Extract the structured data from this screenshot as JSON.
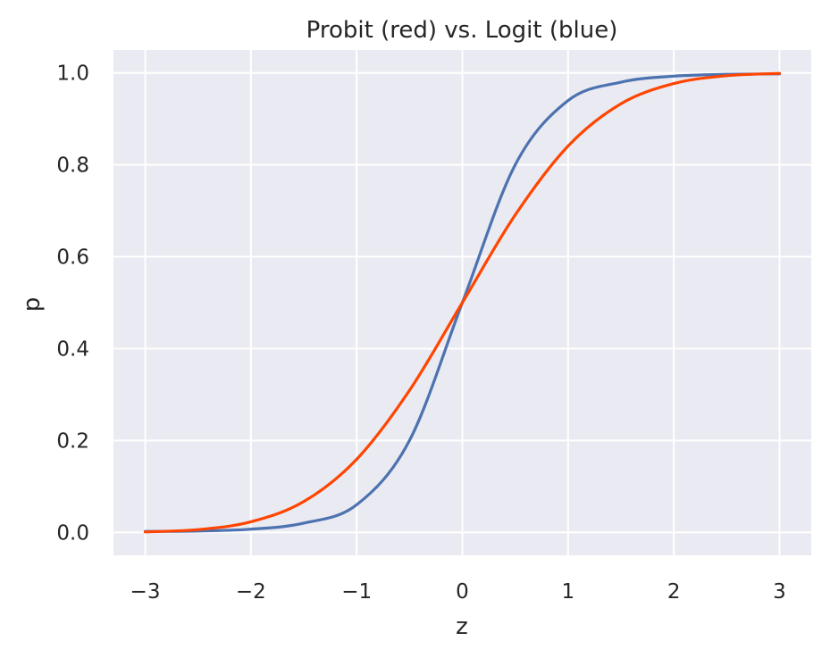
{
  "chart_data": {
    "type": "line",
    "title": "Probit (red) vs. Logit (blue)",
    "xlabel": "z",
    "ylabel": "p",
    "xlim": [
      -3.3,
      3.3
    ],
    "ylim": [
      -0.05,
      1.05
    ],
    "xticks": [
      -3,
      -2,
      -1,
      0,
      1,
      2,
      3
    ],
    "xtick_labels": [
      "−3",
      "−2",
      "−1",
      "0",
      "1",
      "2",
      "3"
    ],
    "yticks": [
      0.0,
      0.2,
      0.4,
      0.6,
      0.8,
      1.0
    ],
    "ytick_labels": [
      "0.0",
      "0.2",
      "0.4",
      "0.6",
      "0.8",
      "1.0"
    ],
    "grid": true,
    "x": [
      -3.0,
      -2.5,
      -2.0,
      -1.5,
      -1.0,
      -0.5,
      0.0,
      0.5,
      1.0,
      1.5,
      2.0,
      2.5,
      3.0
    ],
    "series": [
      {
        "color": "#4c72b0",
        "values": [
          0.002,
          0.003,
          0.007,
          0.02,
          0.06,
          0.2,
          0.5,
          0.8,
          0.94,
          0.98,
          0.993,
          0.997,
          0.998
        ]
      },
      {
        "color": "#ff4500",
        "values": [
          0.001,
          0.006,
          0.023,
          0.067,
          0.159,
          0.309,
          0.5,
          0.691,
          0.841,
          0.933,
          0.977,
          0.994,
          0.999
        ]
      }
    ],
    "background_color": "#eaeaf2",
    "grid_color": "#ffffff"
  }
}
